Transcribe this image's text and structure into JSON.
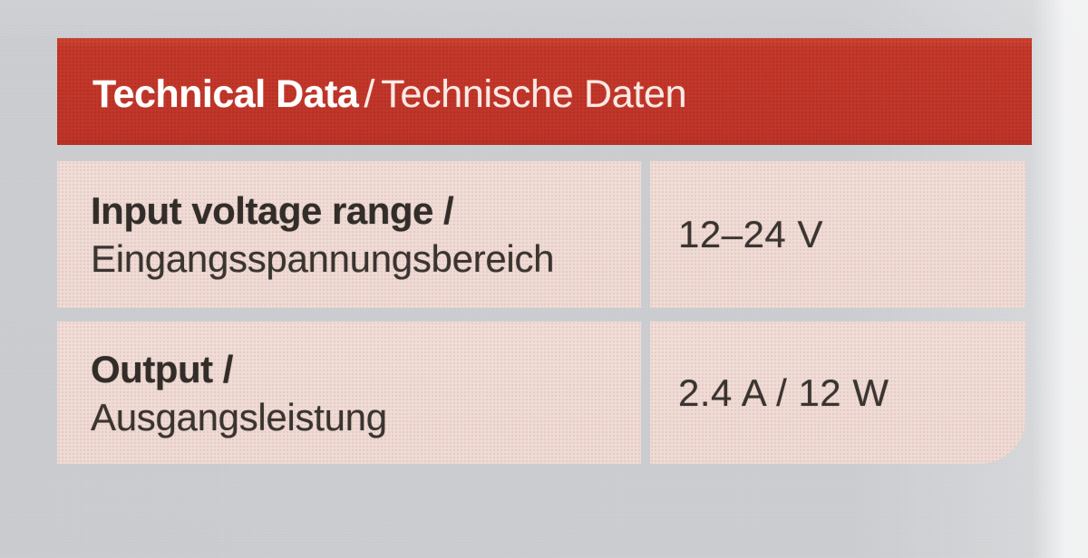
{
  "header": {
    "title_en": "Technical Data",
    "separator": "/",
    "title_de": "Technische Daten"
  },
  "rows": [
    {
      "label_en": "Input voltage range /",
      "label_de": "Eingangsspannungsbereich",
      "value": "12–24 V"
    },
    {
      "label_en": "Output /",
      "label_de": "Ausgangsleistung",
      "value": "2.4 A / 12 W"
    }
  ],
  "colors": {
    "header_red": "#c5392a",
    "cell_pink": "#eedbd5",
    "photo_background": "#e5e6e8",
    "text_dark": "#332d2a",
    "header_text": "#ffffff"
  }
}
